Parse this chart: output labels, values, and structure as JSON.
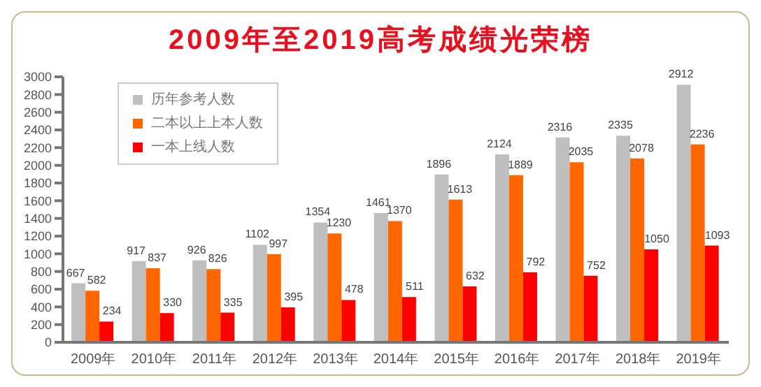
{
  "chart_data": {
    "type": "bar",
    "title": "2009年至2019高考成绩光荣榜",
    "categories": [
      "2009年",
      "2010年",
      "2011年",
      "2012年",
      "2013年",
      "2014年",
      "2015年",
      "2016年",
      "2017年",
      "2018年",
      "2019年"
    ],
    "series": [
      {
        "name": "历年参考人数",
        "color": "#bfbfbf",
        "values": [
          667,
          917,
          926,
          1102,
          1354,
          1461,
          1896,
          2124,
          2316,
          2335,
          2912
        ]
      },
      {
        "name": "二本以上上本人数",
        "color": "#ff6600",
        "values": [
          582,
          837,
          826,
          997,
          1230,
          1370,
          1613,
          1889,
          2035,
          2078,
          2236
        ]
      },
      {
        "name": "一本上线人数",
        "color": "#ff0000",
        "values": [
          234,
          330,
          335,
          395,
          478,
          511,
          632,
          792,
          752,
          1050,
          1093
        ]
      }
    ],
    "ylim": [
      0,
      3000
    ],
    "yticks": [
      0,
      200,
      400,
      600,
      800,
      1000,
      1200,
      1400,
      1600,
      1800,
      2000,
      2200,
      2400,
      2600,
      2800,
      3000
    ],
    "data_labels": true,
    "legend": "top left",
    "grid": false
  }
}
